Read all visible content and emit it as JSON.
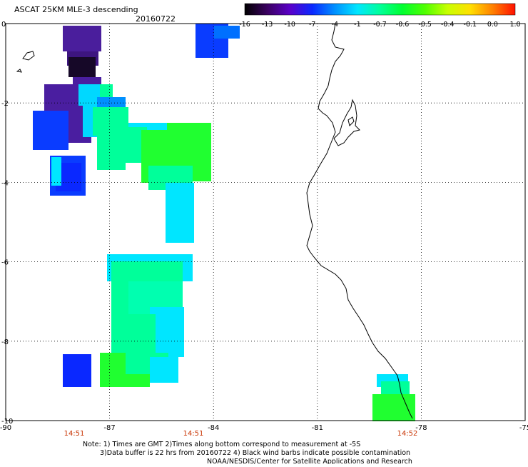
{
  "header": {
    "title": "ASCAT 25KM MLE-3 descending",
    "date": "20160722"
  },
  "colorbar": {
    "tick_labels": [
      "-16",
      "-13",
      "-10",
      "-7",
      "-4",
      "-1",
      "-0.7",
      "-0.6",
      "-0.5",
      "-0.4",
      "-0.1",
      "0.0",
      "1.0"
    ],
    "colors": [
      "#000000",
      "#3a0060",
      "#5a00c8",
      "#0a28ff",
      "#0090ff",
      "#00e6ff",
      "#00ff9a",
      "#00ff30",
      "#50ff00",
      "#c8ff00",
      "#ffe000",
      "#ff8000",
      "#ff1000"
    ]
  },
  "axes": {
    "x_tick_labels": [
      "-90",
      "-87",
      "-84",
      "-81",
      "-78",
      "-75"
    ],
    "y_tick_labels": [
      "0",
      "-2",
      "-4",
      "-6",
      "-8",
      "-10"
    ],
    "xlim": [
      -90,
      -75
    ],
    "ylim": [
      -10,
      0
    ],
    "grid": "dotted"
  },
  "times": [
    {
      "label": "14:51",
      "color": "#c83200"
    },
    {
      "label": "14:51",
      "color": "#c83200"
    },
    {
      "label": "14:52",
      "color": "#c83200"
    }
  ],
  "notes": {
    "line1": "Note: 1) Times are GMT 2)Times along bottom correspond to measurement at -5S",
    "line2": "3)Data buffer is 22 hrs from 20160722 4) Black wind barbs indicate possible contamination",
    "line3": "NOAA/NESDIS/Center for Satellite Applications and Research"
  }
}
